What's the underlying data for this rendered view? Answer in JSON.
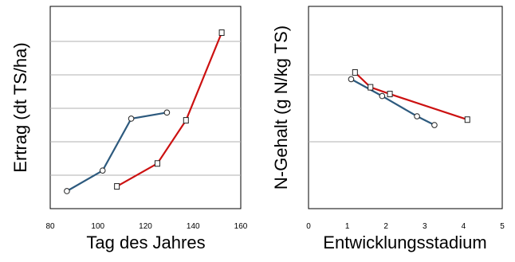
{
  "chart_data": [
    {
      "type": "line",
      "xlabel": "Tag des Jahres",
      "ylabel": "Ertrag (dt TS/ha)",
      "xlim": [
        80,
        160
      ],
      "xticks": [
        "80",
        "100",
        "120",
        "140",
        "160"
      ],
      "ylim": [
        0,
        6
      ],
      "yticks_labeled": false,
      "grid": "horizontal",
      "colors": {
        "series_blue": "#2d5a7e",
        "series_red": "#cc1111",
        "grid": "#b0b0b0"
      },
      "series": [
        {
          "marker": "circle",
          "color": "#2d5a7e",
          "x": [
            87,
            102,
            114,
            129
          ],
          "y": [
            0.52,
            1.13,
            2.67,
            2.85
          ]
        },
        {
          "marker": "square",
          "color": "#cc1111",
          "x": [
            108,
            125,
            137,
            152
          ],
          "y": [
            0.66,
            1.34,
            2.62,
            5.22
          ]
        }
      ]
    },
    {
      "type": "line",
      "xlabel": "Entwicklungsstadium",
      "ylabel": "N-Gehalt (g N/kg TS)",
      "xlim": [
        0,
        5
      ],
      "xticks": [
        "0",
        "1",
        "2",
        "3",
        "4",
        "5"
      ],
      "ylim": [
        0,
        3
      ],
      "yticks_labeled": false,
      "grid": "horizontal",
      "colors": {
        "series_blue": "#2d5a7e",
        "series_red": "#cc1111",
        "grid": "#b0b0b0"
      },
      "series": [
        {
          "marker": "circle",
          "color": "#2d5a7e",
          "x": [
            1.1,
            1.9,
            2.8,
            3.25
          ],
          "y": [
            1.92,
            1.67,
            1.37,
            1.24
          ]
        },
        {
          "marker": "square",
          "color": "#cc1111",
          "x": [
            1.2,
            1.6,
            2.1,
            4.1
          ],
          "y": [
            2.02,
            1.8,
            1.7,
            1.32
          ]
        }
      ]
    }
  ]
}
